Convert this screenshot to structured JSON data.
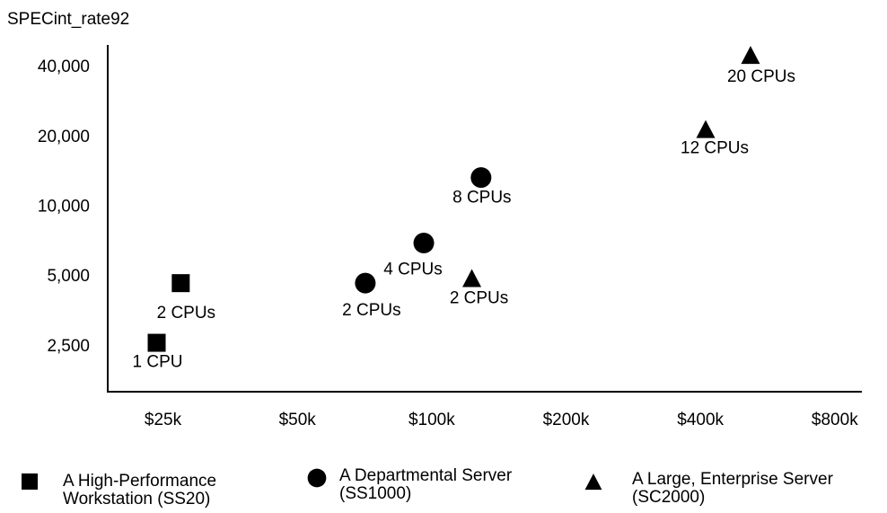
{
  "chart_data": {
    "type": "scatter",
    "ylabel": "SPECint_rate92",
    "xscale": "log",
    "yscale": "log",
    "xlim": [
      18800,
      920000
    ],
    "ylim": [
      1600,
      50000
    ],
    "xticks": [
      {
        "value": 25000,
        "label": "$25k"
      },
      {
        "value": 50000,
        "label": "$50k"
      },
      {
        "value": 100000,
        "label": "$100k"
      },
      {
        "value": 200000,
        "label": "$200k"
      },
      {
        "value": 400000,
        "label": "$400k"
      },
      {
        "value": 800000,
        "label": "$800k"
      }
    ],
    "yticks": [
      {
        "value": 2500,
        "label": "2,500"
      },
      {
        "value": 5000,
        "label": "5,000"
      },
      {
        "value": 10000,
        "label": "10,000"
      },
      {
        "value": 20000,
        "label": "20,000"
      },
      {
        "value": 40000,
        "label": "40,000"
      }
    ],
    "grid": false,
    "legend": "bottom",
    "series": [
      {
        "name": "A High-Performance Workstation (SS20)",
        "color": "#000000",
        "marker": "square",
        "x": [
          24200,
          27400
        ],
        "values": [
          2600,
          4700
        ],
        "labels": [
          "1 CPU",
          "2 CPUs"
        ]
      },
      {
        "name": "A Departmental Server (SS1000)",
        "color": "#000000",
        "marker": "circle",
        "x": [
          71000,
          96000,
          129000
        ],
        "values": [
          4700,
          7000,
          13400
        ],
        "labels": [
          "2 CPUs",
          "4 CPUs",
          "8 CPUs"
        ]
      },
      {
        "name": "A Large, Enterprise Server (SC2000)",
        "color": "#000000",
        "marker": "triangle",
        "x": [
          123000,
          411000,
          518000
        ],
        "values": [
          4900,
          21500,
          44900
        ],
        "labels": [
          "2 CPUs",
          "12 CPUs",
          "20 CPUs"
        ]
      }
    ]
  }
}
